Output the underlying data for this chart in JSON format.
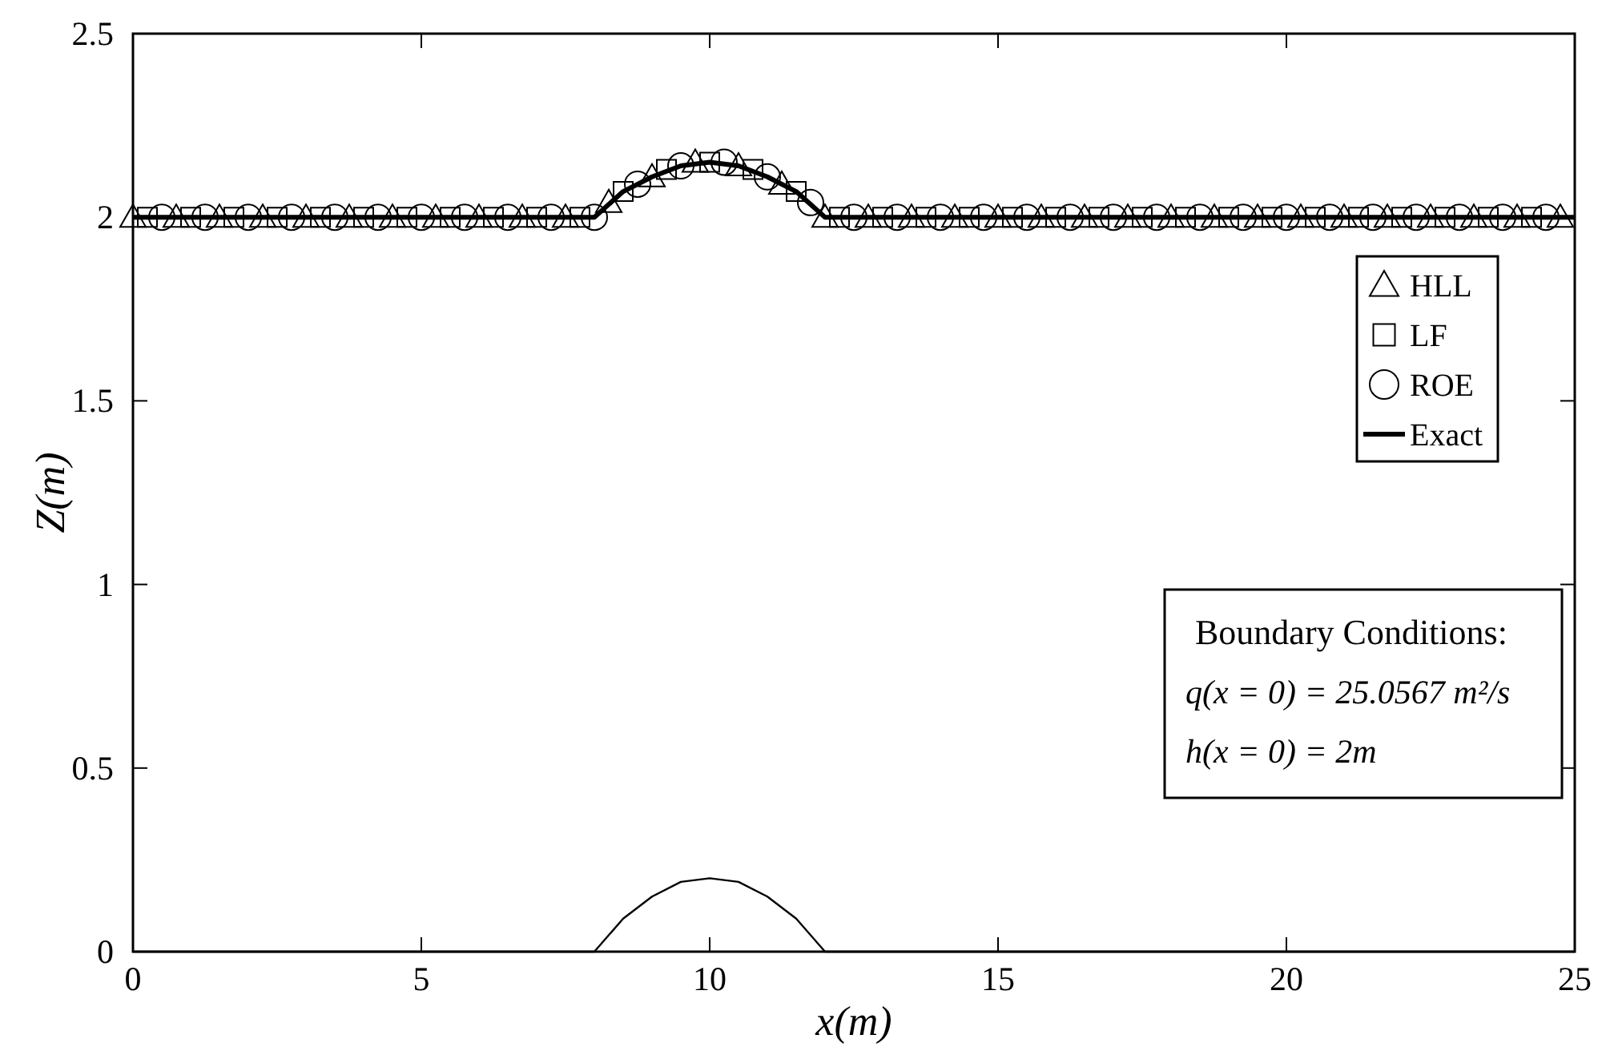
{
  "chart_data": {
    "type": "line",
    "xlabel": "x(m)",
    "ylabel": "Z(m)",
    "x": [
      0,
      0.5,
      1,
      1.5,
      2,
      2.5,
      3,
      3.5,
      4,
      4.5,
      5,
      5.5,
      6,
      6.5,
      7,
      7.5,
      8,
      8.5,
      9,
      9.5,
      10,
      10.5,
      11,
      11.5,
      12,
      12.5,
      13,
      13.5,
      14,
      14.5,
      15,
      15.5,
      16,
      16.5,
      17,
      17.5,
      18,
      18.5,
      19,
      19.5,
      20,
      20.5,
      21,
      21.5,
      22,
      22.5,
      23,
      23.5,
      24,
      24.5,
      25
    ],
    "series": [
      {
        "name": "HLL",
        "type": "scatter",
        "marker": "triangle",
        "color": "#000000",
        "x": [
          0,
          0.75,
          1.5,
          2.25,
          3,
          3.75,
          4.5,
          5.25,
          6,
          6.75,
          7.5,
          8.25,
          9,
          9.75,
          10.5,
          11.25,
          12,
          12.75,
          13.5,
          14.25,
          15,
          15.75,
          16.5,
          17.25,
          18,
          18.75,
          19.5,
          20.25,
          21,
          21.75,
          22.5,
          23.25,
          24,
          24.75
        ],
        "values": [
          2,
          2,
          2,
          2,
          2,
          2,
          2,
          2,
          2,
          2,
          2,
          2.04,
          2.11,
          2.15,
          2.14,
          2.09,
          2,
          2,
          2,
          2,
          2,
          2,
          2,
          2,
          2,
          2,
          2,
          2,
          2,
          2,
          2,
          2,
          2,
          2
        ]
      },
      {
        "name": "LF",
        "type": "scatter",
        "marker": "square",
        "color": "#000000",
        "x": [
          0.25,
          1,
          1.75,
          2.5,
          3.25,
          4,
          4.75,
          5.5,
          6.25,
          7,
          7.75,
          8.5,
          9.25,
          10,
          10.75,
          11.5,
          12.25,
          13,
          13.75,
          14.5,
          15.25,
          16,
          16.75,
          17.5,
          18.25,
          19,
          19.75,
          20.5,
          21.25,
          22,
          22.75,
          23.5,
          24.25
        ],
        "values": [
          2,
          2,
          2,
          2,
          2,
          2,
          2,
          2,
          2,
          2,
          2,
          2.07,
          2.13,
          2.15,
          2.13,
          2.07,
          2,
          2,
          2,
          2,
          2,
          2,
          2,
          2,
          2,
          2,
          2,
          2,
          2,
          2,
          2,
          2,
          2
        ]
      },
      {
        "name": "ROE",
        "type": "scatter",
        "marker": "circle",
        "color": "#000000",
        "x": [
          0.5,
          1.25,
          2,
          2.75,
          3.5,
          4.25,
          5,
          5.75,
          6.5,
          7.25,
          8,
          8.75,
          9.5,
          10.25,
          11,
          11.75,
          12.5,
          13.25,
          14,
          14.75,
          15.5,
          16.25,
          17,
          17.75,
          18.5,
          19.25,
          20,
          20.75,
          21.5,
          22.25,
          23,
          23.75,
          24.5
        ],
        "values": [
          2,
          2,
          2,
          2,
          2,
          2,
          2,
          2,
          2,
          2,
          2,
          2.09,
          2.14,
          2.15,
          2.11,
          2.04,
          2,
          2,
          2,
          2,
          2,
          2,
          2,
          2,
          2,
          2,
          2,
          2,
          2,
          2,
          2,
          2,
          2
        ]
      },
      {
        "name": "Exact",
        "color": "#000000",
        "values": [
          2,
          2,
          2,
          2,
          2,
          2,
          2,
          2,
          2,
          2,
          2,
          2,
          2,
          2,
          2,
          2,
          2,
          2.07,
          2.11,
          2.14,
          2.15,
          2.14,
          2.11,
          2.07,
          2,
          2,
          2,
          2,
          2,
          2,
          2,
          2,
          2,
          2,
          2,
          2,
          2,
          2,
          2,
          2,
          2,
          2,
          2,
          2,
          2,
          2,
          2,
          2,
          2,
          2,
          2
        ]
      },
      {
        "color": "#000000",
        "values": [
          0,
          0,
          0,
          0,
          0,
          0,
          0,
          0,
          0,
          0,
          0,
          0,
          0,
          0,
          0,
          0,
          0,
          0.09,
          0.15,
          0.19,
          0.2,
          0.19,
          0.15,
          0.09,
          0,
          0,
          0,
          0,
          0,
          0,
          0,
          0,
          0,
          0,
          0,
          0,
          0,
          0,
          0,
          0,
          0,
          0,
          0,
          0,
          0,
          0,
          0,
          0,
          0,
          0,
          0
        ]
      }
    ],
    "xlim": [
      0,
      25
    ],
    "xticks": [
      0,
      5,
      10,
      15,
      20,
      25
    ],
    "ylim": [
      0,
      2.5
    ],
    "yticks": [
      0,
      0.5,
      1,
      1.5,
      2,
      2.5
    ],
    "grid": false,
    "legend": "right",
    "annotations": [
      "Boundary Conditions:",
      "q(x = 0) = 25.0567 m²/s",
      "h(x = 0) = 2m"
    ]
  }
}
